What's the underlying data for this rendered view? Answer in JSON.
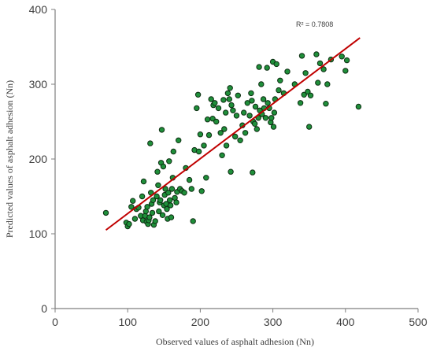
{
  "chart_data": {
    "type": "scatter",
    "title": "",
    "xlabel": "Observed values of asphalt adhesion (Nn)",
    "ylabel": "Predicted values of asphalt adhesion (Nn)",
    "xlim": [
      0,
      500
    ],
    "ylim": [
      0,
      400
    ],
    "xticks": [
      "0",
      "100",
      "200",
      "300",
      "400",
      "500"
    ],
    "yticks": [
      "0",
      "100",
      "200",
      "300",
      "400"
    ],
    "grid": false,
    "legend": "none",
    "annotation": "R² = 0.7808",
    "colors": {
      "marker_fill": "#1f8f3a",
      "marker_edge": "#0d2e12",
      "trendline": "#c00000",
      "axis": "#7f7f7f"
    },
    "trendline": {
      "x": [
        70,
        420
      ],
      "y": [
        105,
        362
      ]
    },
    "points": [
      [
        70,
        128
      ],
      [
        98,
        115
      ],
      [
        100,
        110
      ],
      [
        102,
        113
      ],
      [
        105,
        136
      ],
      [
        107,
        144
      ],
      [
        110,
        120
      ],
      [
        112,
        133
      ],
      [
        115,
        135
      ],
      [
        118,
        124
      ],
      [
        120,
        150
      ],
      [
        121,
        118
      ],
      [
        122,
        170
      ],
      [
        124,
        124
      ],
      [
        125,
        130
      ],
      [
        126,
        116
      ],
      [
        127,
        136
      ],
      [
        128,
        113
      ],
      [
        129,
        118
      ],
      [
        130,
        122
      ],
      [
        131,
        221
      ],
      [
        132,
        155
      ],
      [
        133,
        140
      ],
      [
        134,
        128
      ],
      [
        135,
        145
      ],
      [
        136,
        112
      ],
      [
        138,
        117
      ],
      [
        140,
        150
      ],
      [
        141,
        183
      ],
      [
        142,
        165
      ],
      [
        143,
        130
      ],
      [
        144,
        142
      ],
      [
        145,
        145
      ],
      [
        146,
        195
      ],
      [
        147,
        239
      ],
      [
        148,
        125
      ],
      [
        149,
        190
      ],
      [
        150,
        138
      ],
      [
        151,
        152
      ],
      [
        152,
        160
      ],
      [
        153,
        140
      ],
      [
        154,
        133
      ],
      [
        155,
        120
      ],
      [
        156,
        155
      ],
      [
        157,
        197
      ],
      [
        158,
        145
      ],
      [
        159,
        138
      ],
      [
        160,
        122
      ],
      [
        161,
        160
      ],
      [
        162,
        175
      ],
      [
        163,
        210
      ],
      [
        165,
        148
      ],
      [
        167,
        142
      ],
      [
        168,
        156
      ],
      [
        170,
        225
      ],
      [
        172,
        160
      ],
      [
        175,
        157
      ],
      [
        178,
        155
      ],
      [
        180,
        188
      ],
      [
        185,
        172
      ],
      [
        188,
        160
      ],
      [
        190,
        117
      ],
      [
        192,
        212
      ],
      [
        195,
        268
      ],
      [
        197,
        286
      ],
      [
        198,
        210
      ],
      [
        200,
        233
      ],
      [
        202,
        157
      ],
      [
        205,
        218
      ],
      [
        208,
        175
      ],
      [
        210,
        253
      ],
      [
        212,
        232
      ],
      [
        215,
        280
      ],
      [
        217,
        254
      ],
      [
        218,
        272
      ],
      [
        220,
        275
      ],
      [
        222,
        250
      ],
      [
        225,
        268
      ],
      [
        228,
        235
      ],
      [
        230,
        205
      ],
      [
        232,
        279
      ],
      [
        233,
        240
      ],
      [
        235,
        262
      ],
      [
        236,
        218
      ],
      [
        238,
        288
      ],
      [
        240,
        280
      ],
      [
        241,
        295
      ],
      [
        242,
        183
      ],
      [
        243,
        272
      ],
      [
        245,
        265
      ],
      [
        248,
        230
      ],
      [
        250,
        258
      ],
      [
        252,
        285
      ],
      [
        255,
        225
      ],
      [
        258,
        245
      ],
      [
        260,
        262
      ],
      [
        262,
        235
      ],
      [
        265,
        275
      ],
      [
        268,
        258
      ],
      [
        270,
        288
      ],
      [
        271,
        278
      ],
      [
        272,
        182
      ],
      [
        273,
        250
      ],
      [
        275,
        247
      ],
      [
        276,
        270
      ],
      [
        278,
        240
      ],
      [
        280,
        255
      ],
      [
        281,
        323
      ],
      [
        282,
        265
      ],
      [
        284,
        300
      ],
      [
        285,
        260
      ],
      [
        287,
        280
      ],
      [
        288,
        268
      ],
      [
        290,
        255
      ],
      [
        292,
        322
      ],
      [
        293,
        275
      ],
      [
        295,
        268
      ],
      [
        297,
        249
      ],
      [
        298,
        255
      ],
      [
        300,
        330
      ],
      [
        301,
        243
      ],
      [
        302,
        262
      ],
      [
        303,
        280
      ],
      [
        305,
        327
      ],
      [
        308,
        292
      ],
      [
        310,
        305
      ],
      [
        315,
        288
      ],
      [
        320,
        317
      ],
      [
        330,
        300
      ],
      [
        338,
        275
      ],
      [
        340,
        338
      ],
      [
        343,
        286
      ],
      [
        345,
        315
      ],
      [
        348,
        290
      ],
      [
        350,
        243
      ],
      [
        352,
        285
      ],
      [
        360,
        340
      ],
      [
        362,
        302
      ],
      [
        365,
        328
      ],
      [
        370,
        320
      ],
      [
        373,
        274
      ],
      [
        375,
        300
      ],
      [
        380,
        333
      ],
      [
        395,
        337
      ],
      [
        400,
        318
      ],
      [
        402,
        332
      ],
      [
        418,
        270
      ]
    ]
  }
}
